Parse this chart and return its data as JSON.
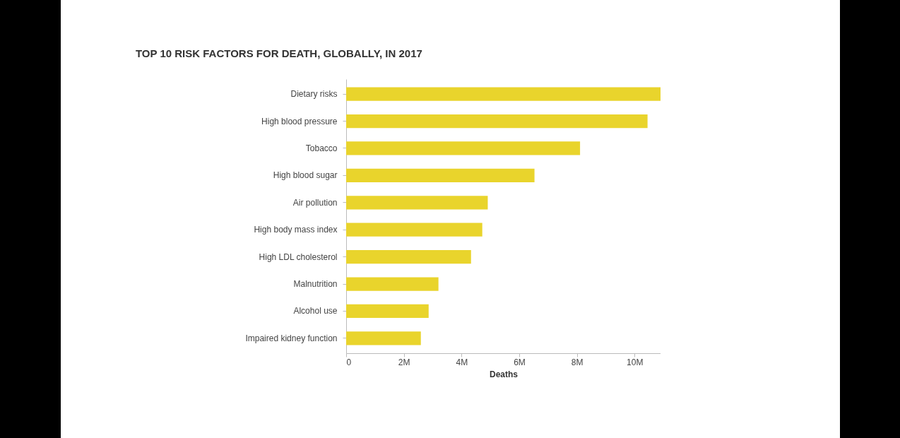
{
  "chart_data": {
    "type": "bar",
    "orientation": "horizontal",
    "title": "TOP 10 RISK FACTORS FOR DEATH, GLOBALLY, IN 2017",
    "xlabel": "Deaths",
    "categories": [
      "Dietary risks",
      "High blood pressure",
      "Tobacco",
      "High blood sugar",
      "Air pollution",
      "High body mass index",
      "High LDL cholesterol",
      "Malnutrition",
      "Alcohol use",
      "Impaired kidney function"
    ],
    "values": [
      10900000,
      10450000,
      8110000,
      6530000,
      4910000,
      4720000,
      4330000,
      3200000,
      2860000,
      2590000
    ],
    "color": "#e9d42c",
    "xlim": [
      0,
      10900000
    ],
    "xticks": [
      0,
      {
        "value": 2000000,
        "label": "2M"
      },
      {
        "value": 4000000,
        "label": "4M"
      },
      {
        "value": 6000000,
        "label": "6M"
      },
      {
        "value": 8000000,
        "label": "8M"
      },
      {
        "value": 10000000,
        "label": "10M"
      }
    ],
    "grid": false
  }
}
